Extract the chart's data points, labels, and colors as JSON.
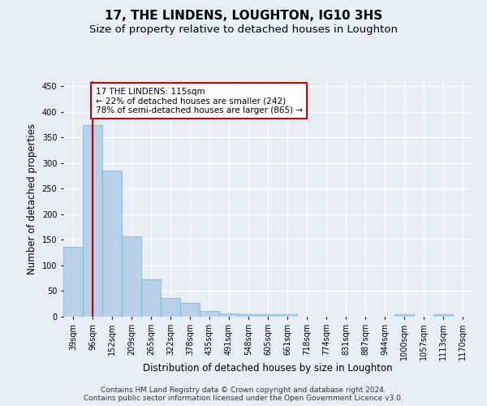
{
  "title": "17, THE LINDENS, LOUGHTON, IG10 3HS",
  "subtitle": "Size of property relative to detached houses in Loughton",
  "xlabel": "Distribution of detached houses by size in Loughton",
  "ylabel": "Number of detached properties",
  "categories": [
    "39sqm",
    "96sqm",
    "152sqm",
    "209sqm",
    "265sqm",
    "322sqm",
    "378sqm",
    "435sqm",
    "491sqm",
    "548sqm",
    "605sqm",
    "661sqm",
    "718sqm",
    "774sqm",
    "831sqm",
    "887sqm",
    "944sqm",
    "1000sqm",
    "1057sqm",
    "1113sqm",
    "1170sqm"
  ],
  "values": [
    137,
    375,
    285,
    157,
    73,
    37,
    27,
    11,
    6,
    5,
    5,
    4,
    0,
    0,
    0,
    0,
    0,
    4,
    0,
    4,
    0
  ],
  "bar_color": "#b8d0ea",
  "bar_edge_color": "#7aafd4",
  "vline_x": 1,
  "vline_color": "#cc0000",
  "annotation_text": "17 THE LINDENS: 115sqm\n← 22% of detached houses are smaller (242)\n78% of semi-detached houses are larger (865) →",
  "annotation_box_color": "#ffffff",
  "annotation_box_edge": "#cc0000",
  "ylim": [
    0,
    460
  ],
  "yticks": [
    0,
    50,
    100,
    150,
    200,
    250,
    300,
    350,
    400,
    450
  ],
  "footer_line1": "Contains HM Land Registry data © Crown copyright and database right 2024.",
  "footer_line2": "Contains public sector information licensed under the Open Government Licence v3.0.",
  "background_color": "#e8eef8",
  "grid_color": "#ffffff",
  "title_fontsize": 11,
  "subtitle_fontsize": 9.5,
  "axis_label_fontsize": 8.5,
  "tick_fontsize": 7,
  "annotation_fontsize": 7.5,
  "footer_fontsize": 6.5
}
